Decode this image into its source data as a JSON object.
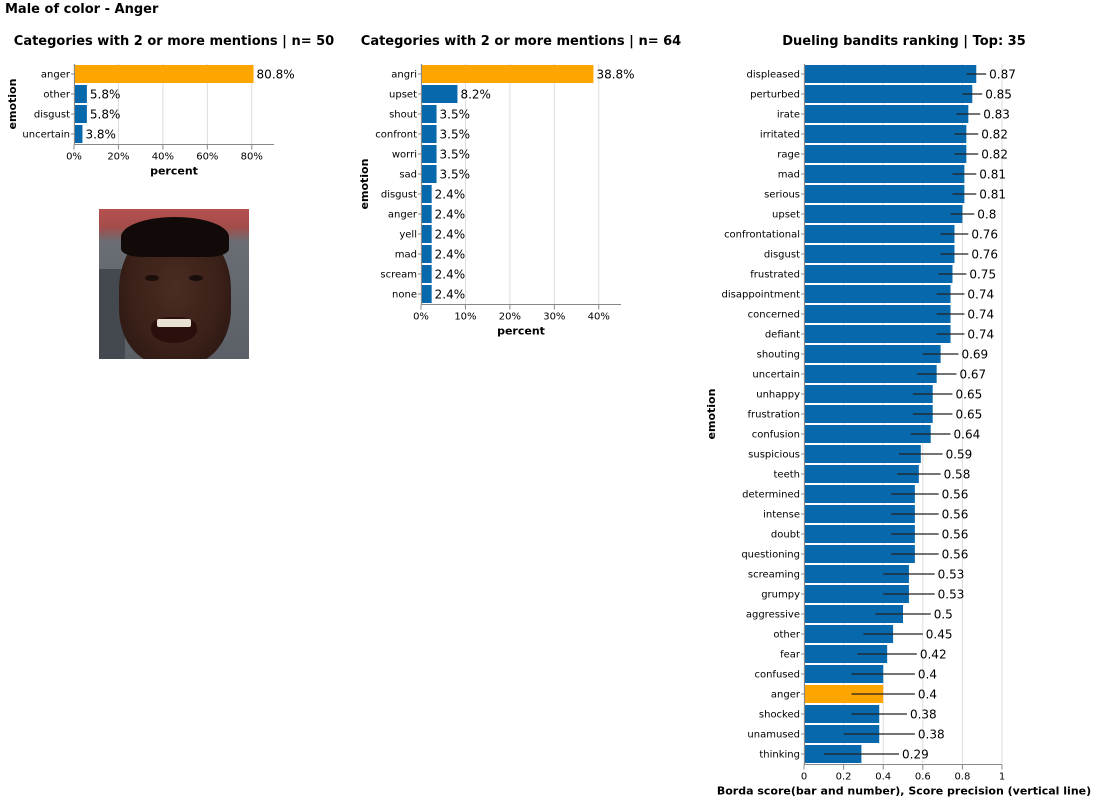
{
  "page_title": "Male of color - Anger",
  "colors": {
    "bar": "#0868ac",
    "highlight": "#ffa500",
    "grid": "#dddddd",
    "axis": "#888888"
  },
  "image": {
    "icon": "face-photo",
    "alt": ""
  },
  "chart_data": [
    {
      "type": "bar",
      "orientation": "horizontal",
      "title": "Categories with 2 or more mentions | n= 50",
      "xlabel": "percent",
      "ylabel": "emotion",
      "xlim": [
        0,
        90
      ],
      "xticks": [
        0,
        20,
        40,
        60,
        80
      ],
      "xtick_labels": [
        "0%",
        "20%",
        "40%",
        "60%",
        "80%"
      ],
      "categories": [
        "anger",
        "other",
        "disgust",
        "uncertain"
      ],
      "values": [
        80.8,
        5.8,
        5.8,
        3.8
      ],
      "value_labels": [
        "80.8%",
        "5.8%",
        "5.8%",
        "3.8%"
      ],
      "highlight": [
        "anger"
      ],
      "grid": true
    },
    {
      "type": "bar",
      "orientation": "horizontal",
      "title": "Categories with 2 or more mentions | n= 64",
      "xlabel": "percent",
      "ylabel": "emotion",
      "xlim": [
        0,
        45
      ],
      "xticks": [
        0,
        10,
        20,
        30,
        40
      ],
      "xtick_labels": [
        "0%",
        "10%",
        "20%",
        "30%",
        "40%"
      ],
      "categories": [
        "angri",
        "upset",
        "shout",
        "confront",
        "worri",
        "sad",
        "disgust",
        "anger",
        "yell",
        "mad",
        "scream",
        "none"
      ],
      "values": [
        38.8,
        8.2,
        3.5,
        3.5,
        3.5,
        3.5,
        2.4,
        2.4,
        2.4,
        2.4,
        2.4,
        2.4
      ],
      "value_labels": [
        "38.8%",
        "8.2%",
        "3.5%",
        "3.5%",
        "3.5%",
        "3.5%",
        "2.4%",
        "2.4%",
        "2.4%",
        "2.4%",
        "2.4%",
        "2.4%"
      ],
      "highlight": [
        "angri"
      ],
      "grid": true
    },
    {
      "type": "bar",
      "orientation": "horizontal",
      "title": "Dueling bandits ranking | Top: 35",
      "xlabel": "Borda score(bar and number), Score precision (vertical line)",
      "ylabel": "emotion",
      "xlim": [
        0,
        1
      ],
      "xticks": [
        0,
        0.2,
        0.4,
        0.6,
        0.8,
        1
      ],
      "xtick_labels": [
        "0",
        "0.2",
        "0.4",
        "0.6",
        "0.8",
        "1"
      ],
      "categories": [
        "displeased",
        "perturbed",
        "irate",
        "irritated",
        "rage",
        "mad",
        "serious",
        "upset",
        "confrontational",
        "disgust",
        "frustrated",
        "disappointment",
        "concerned",
        "defiant",
        "shouting",
        "uncertain",
        "unhappy",
        "frustration",
        "confusion",
        "suspicious",
        "teeth",
        "determined",
        "intense",
        "doubt",
        "questioning",
        "screaming",
        "grumpy",
        "aggressive",
        "other",
        "fear",
        "confused",
        "anger",
        "shocked",
        "unamused",
        "thinking"
      ],
      "values": [
        0.87,
        0.85,
        0.83,
        0.82,
        0.82,
        0.81,
        0.81,
        0.8,
        0.76,
        0.76,
        0.75,
        0.74,
        0.74,
        0.74,
        0.69,
        0.67,
        0.65,
        0.65,
        0.64,
        0.59,
        0.58,
        0.56,
        0.56,
        0.56,
        0.56,
        0.53,
        0.53,
        0.5,
        0.45,
        0.42,
        0.4,
        0.4,
        0.38,
        0.38,
        0.29
      ],
      "value_labels": [
        "0.87",
        "0.85",
        "0.83",
        "0.82",
        "0.82",
        "0.81",
        "0.81",
        "0.8",
        "0.76",
        "0.76",
        "0.75",
        "0.74",
        "0.74",
        "0.74",
        "0.69",
        "0.67",
        "0.65",
        "0.65",
        "0.64",
        "0.59",
        "0.58",
        "0.56",
        "0.56",
        "0.56",
        "0.56",
        "0.53",
        "0.53",
        "0.5",
        "0.45",
        "0.42",
        "0.4",
        "0.4",
        "0.38",
        "0.38",
        "0.29"
      ],
      "precision_low": [
        0.82,
        0.8,
        0.77,
        0.76,
        0.76,
        0.75,
        0.75,
        0.74,
        0.69,
        0.69,
        0.68,
        0.67,
        0.67,
        0.67,
        0.6,
        0.57,
        0.55,
        0.55,
        0.54,
        0.48,
        0.47,
        0.44,
        0.44,
        0.44,
        0.44,
        0.4,
        0.4,
        0.36,
        0.3,
        0.27,
        0.24,
        0.24,
        0.24,
        0.2,
        0.1
      ],
      "precision_high": [
        0.92,
        0.9,
        0.89,
        0.88,
        0.88,
        0.87,
        0.87,
        0.86,
        0.83,
        0.83,
        0.82,
        0.81,
        0.81,
        0.81,
        0.78,
        0.77,
        0.75,
        0.75,
        0.74,
        0.7,
        0.69,
        0.68,
        0.68,
        0.68,
        0.68,
        0.66,
        0.66,
        0.64,
        0.6,
        0.57,
        0.56,
        0.56,
        0.52,
        0.56,
        0.48
      ],
      "highlight": [
        "anger"
      ],
      "grid": true
    }
  ]
}
